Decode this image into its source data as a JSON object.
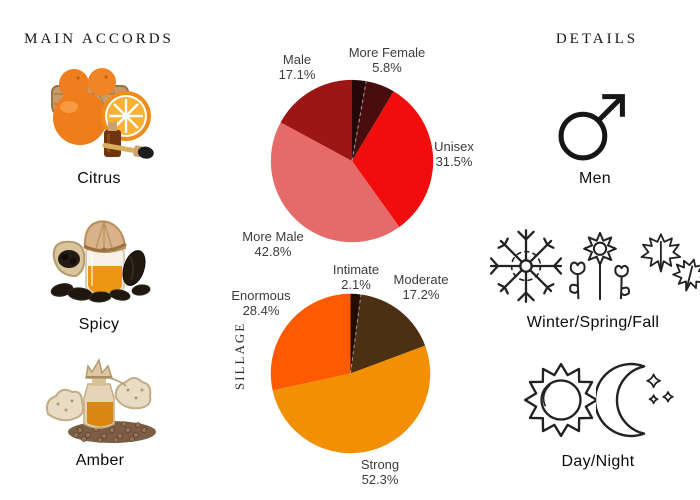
{
  "left_panel": {
    "title": "MAIN ACCORDS",
    "accords": [
      {
        "label": "Citrus",
        "illustration": "citrus-oranges-basket-oil-dropper"
      },
      {
        "label": "Spicy",
        "illustration": "spice-jar-tonka-beans"
      },
      {
        "label": "Amber",
        "illustration": "amber-bottle-resin-granules"
      }
    ]
  },
  "right_panel": {
    "title": "DETAILS",
    "details": [
      {
        "label": "Men",
        "icons": [
          "mars-icon"
        ]
      },
      {
        "label": "Winter/Spring/Fall",
        "icons": [
          "snowflake-icon",
          "flower-icon",
          "maple-leaves-icon"
        ]
      },
      {
        "label": "Day/Night",
        "icons": [
          "sun-icon",
          "moon-icon"
        ]
      }
    ]
  },
  "chart_data": [
    {
      "id": "gender",
      "type": "pie",
      "title": "",
      "legend_position": "none",
      "start_angle_deg": 0,
      "direction": "clockwise",
      "dashed_divider_after_slice": 0,
      "slices": [
        {
          "label": "",
          "pct_label": "",
          "value": 2.8,
          "color": "#260707"
        },
        {
          "label": "More Female",
          "pct_label": "5.8%",
          "value": 5.8,
          "color": "#4a0d0d"
        },
        {
          "label": "Unisex",
          "pct_label": "31.5%",
          "value": 31.5,
          "color": "#f20d0d"
        },
        {
          "label": "More Male",
          "pct_label": "42.8%",
          "value": 42.8,
          "color": "#e66a6a"
        },
        {
          "label": "Male",
          "pct_label": "17.1%",
          "value": 17.1,
          "color": "#9c1616"
        }
      ]
    },
    {
      "id": "sillage",
      "type": "pie",
      "ylabel": "SILLAGE",
      "legend_position": "none",
      "start_angle_deg": 0,
      "direction": "clockwise",
      "dashed_divider_after_slice": 0,
      "slices": [
        {
          "label": "Intimate",
          "pct_label": "2.1%",
          "value": 2.1,
          "color": "#250c03"
        },
        {
          "label": "Moderate",
          "pct_label": "17.2%",
          "value": 17.2,
          "color": "#4b3013"
        },
        {
          "label": "Strong",
          "pct_label": "52.3%",
          "value": 52.3,
          "color": "#f28f03"
        },
        {
          "label": "Enormous",
          "pct_label": "28.4%",
          "value": 28.4,
          "color": "#fd5a02"
        }
      ]
    }
  ]
}
